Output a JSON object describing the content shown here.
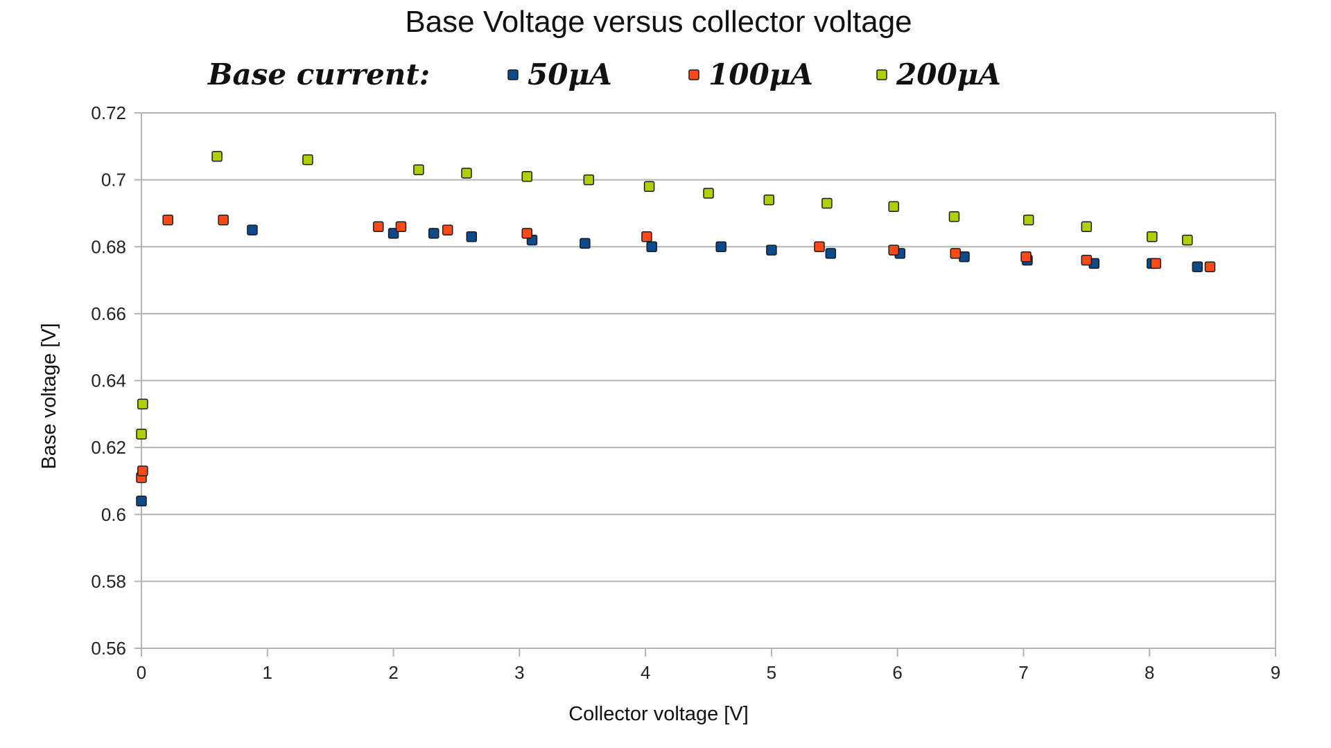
{
  "chart_data": {
    "type": "scatter",
    "title": "Base Voltage versus collector voltage",
    "legend_title": "Base current:",
    "legend_position": "top",
    "xlabel": "Collector  voltage [V]",
    "ylabel": "Base voltage [V]",
    "xlim": [
      0,
      9
    ],
    "ylim": [
      0.56,
      0.72
    ],
    "x_ticks": [
      0,
      1,
      2,
      3,
      4,
      5,
      6,
      7,
      8,
      9
    ],
    "x_tick_labels": [
      "0",
      "1",
      "2",
      "3",
      "4",
      "5",
      "6",
      "7",
      "8",
      "9"
    ],
    "y_ticks": [
      0.56,
      0.58,
      0.6,
      0.62,
      0.64,
      0.66,
      0.68,
      0.7,
      0.72
    ],
    "y_tick_labels": [
      "0.56",
      "0.58",
      "0.6",
      "0.62",
      "0.64",
      "0.66",
      "0.68",
      "0.7",
      "0.72"
    ],
    "grid": "horizontal",
    "series": [
      {
        "name": "50μA",
        "color": "#0d4a8c",
        "points": [
          [
            0.0,
            0.604
          ],
          [
            0.88,
            0.685
          ],
          [
            2.0,
            0.684
          ],
          [
            2.32,
            0.684
          ],
          [
            2.62,
            0.683
          ],
          [
            3.1,
            0.682
          ],
          [
            3.52,
            0.681
          ],
          [
            4.05,
            0.68
          ],
          [
            4.6,
            0.68
          ],
          [
            5.0,
            0.679
          ],
          [
            5.47,
            0.678
          ],
          [
            6.02,
            0.678
          ],
          [
            6.53,
            0.677
          ],
          [
            7.03,
            0.676
          ],
          [
            7.56,
            0.675
          ],
          [
            8.02,
            0.675
          ],
          [
            8.38,
            0.674
          ]
        ]
      },
      {
        "name": "100μA",
        "color": "#ff4a17",
        "points": [
          [
            0.0,
            0.611
          ],
          [
            0.01,
            0.613
          ],
          [
            0.21,
            0.688
          ],
          [
            0.65,
            0.688
          ],
          [
            1.88,
            0.686
          ],
          [
            2.06,
            0.686
          ],
          [
            2.43,
            0.685
          ],
          [
            3.06,
            0.684
          ],
          [
            4.01,
            0.683
          ],
          [
            5.38,
            0.68
          ],
          [
            5.97,
            0.679
          ],
          [
            6.46,
            0.678
          ],
          [
            7.02,
            0.677
          ],
          [
            7.5,
            0.676
          ],
          [
            8.05,
            0.675
          ],
          [
            8.48,
            0.674
          ]
        ]
      },
      {
        "name": "200μA",
        "color": "#aecf00",
        "points": [
          [
            0.0,
            0.624
          ],
          [
            0.01,
            0.633
          ],
          [
            0.6,
            0.707
          ],
          [
            1.32,
            0.706
          ],
          [
            2.2,
            0.703
          ],
          [
            2.58,
            0.702
          ],
          [
            3.06,
            0.701
          ],
          [
            3.55,
            0.7
          ],
          [
            4.03,
            0.698
          ],
          [
            4.5,
            0.696
          ],
          [
            4.98,
            0.694
          ],
          [
            5.44,
            0.693
          ],
          [
            5.97,
            0.692
          ],
          [
            6.45,
            0.689
          ],
          [
            7.04,
            0.688
          ],
          [
            7.5,
            0.686
          ],
          [
            8.02,
            0.683
          ],
          [
            8.3,
            0.682
          ]
        ]
      }
    ]
  }
}
